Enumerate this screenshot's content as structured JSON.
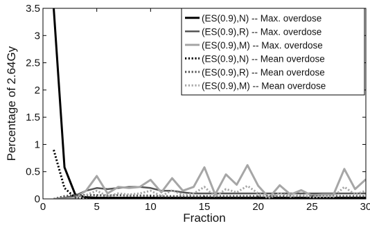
{
  "chart_data": {
    "type": "line",
    "xlabel": "Fraction",
    "ylabel": "Percentage of 2.64Gy",
    "xlim": [
      0,
      30
    ],
    "ylim": [
      0,
      3.5
    ],
    "x_ticks": [
      0,
      5,
      10,
      15,
      20,
      25,
      30
    ],
    "y_ticks": [
      0,
      0.5,
      1,
      1.5,
      2,
      2.5,
      3,
      3.5
    ],
    "grid": false,
    "legend_position": "top-right",
    "x": [
      1,
      2,
      3,
      4,
      5,
      6,
      7,
      8,
      9,
      10,
      11,
      12,
      13,
      14,
      15,
      16,
      17,
      18,
      19,
      20,
      21,
      22,
      23,
      24,
      25,
      26,
      27,
      28,
      29,
      30
    ],
    "series": [
      {
        "name": "(ES(0.9),N) -- Max. overdose",
        "color": "#000000",
        "dash": "solid",
        "width": 3,
        "values": [
          3.5,
          0.58,
          0.08,
          0.03,
          0.02,
          0.02,
          0.02,
          0.02,
          0.02,
          0.02,
          0.02,
          0.02,
          0.02,
          0.02,
          0.02,
          0.02,
          0.02,
          0.02,
          0.02,
          0.02,
          0.02,
          0.02,
          0.02,
          0.02,
          0.02,
          0.02,
          0.02,
          0.02,
          0.02,
          0.02
        ]
      },
      {
        "name": "(ES(0.9),R) -- Max. overdose",
        "color": "#555555",
        "dash": "solid",
        "width": 2.5,
        "values": [
          0.0,
          0.02,
          0.06,
          0.15,
          0.2,
          0.18,
          0.2,
          0.22,
          0.22,
          0.2,
          0.15,
          0.15,
          0.12,
          0.1,
          0.1,
          0.1,
          0.1,
          0.1,
          0.1,
          0.1,
          0.1,
          0.1,
          0.1,
          0.1,
          0.1,
          0.1,
          0.1,
          0.1,
          0.1,
          0.1
        ]
      },
      {
        "name": "(ES(0.9),M) -- Max. overdose",
        "color": "#a6a6a6",
        "dash": "solid",
        "width": 3,
        "values": [
          0.0,
          0.0,
          0.02,
          0.15,
          0.42,
          0.1,
          0.22,
          0.2,
          0.22,
          0.35,
          0.12,
          0.38,
          0.15,
          0.22,
          0.58,
          0.08,
          0.45,
          0.26,
          0.62,
          0.24,
          0.02,
          0.25,
          0.08,
          0.16,
          0.06,
          0.08,
          0.08,
          0.55,
          0.18,
          0.36
        ]
      },
      {
        "name": "(ES(0.9),N) -- Mean overdose",
        "color": "#000000",
        "dash": "dotted",
        "width": 3,
        "values": [
          0.9,
          0.2,
          0.02,
          0.01,
          0.01,
          0.01,
          0.01,
          0.01,
          0.01,
          0.01,
          0.01,
          0.01,
          0.01,
          0.01,
          0.01,
          0.01,
          0.01,
          0.01,
          0.01,
          0.01,
          0.01,
          0.01,
          0.01,
          0.01,
          0.01,
          0.01,
          0.01,
          0.01,
          0.01,
          0.01
        ]
      },
      {
        "name": "(ES(0.9),R) -- Mean overdose",
        "color": "#555555",
        "dash": "dotted",
        "width": 3,
        "values": [
          0.0,
          0.05,
          0.07,
          0.07,
          0.07,
          0.06,
          0.07,
          0.06,
          0.06,
          0.06,
          0.05,
          0.05,
          0.05,
          0.05,
          0.05,
          0.05,
          0.05,
          0.05,
          0.05,
          0.05,
          0.05,
          0.05,
          0.05,
          0.05,
          0.05,
          0.05,
          0.05,
          0.05,
          0.05,
          0.05
        ]
      },
      {
        "name": "(ES(0.9),M) -- Mean overdose",
        "color": "#a6a6a6",
        "dash": "dotted",
        "width": 3,
        "values": [
          0.0,
          0.0,
          0.01,
          0.07,
          0.15,
          0.05,
          0.1,
          0.08,
          0.1,
          0.15,
          0.05,
          0.16,
          0.07,
          0.1,
          0.22,
          0.04,
          0.18,
          0.12,
          0.24,
          0.1,
          0.01,
          0.11,
          0.04,
          0.07,
          0.03,
          0.04,
          0.04,
          0.22,
          0.08,
          0.15
        ]
      }
    ]
  }
}
